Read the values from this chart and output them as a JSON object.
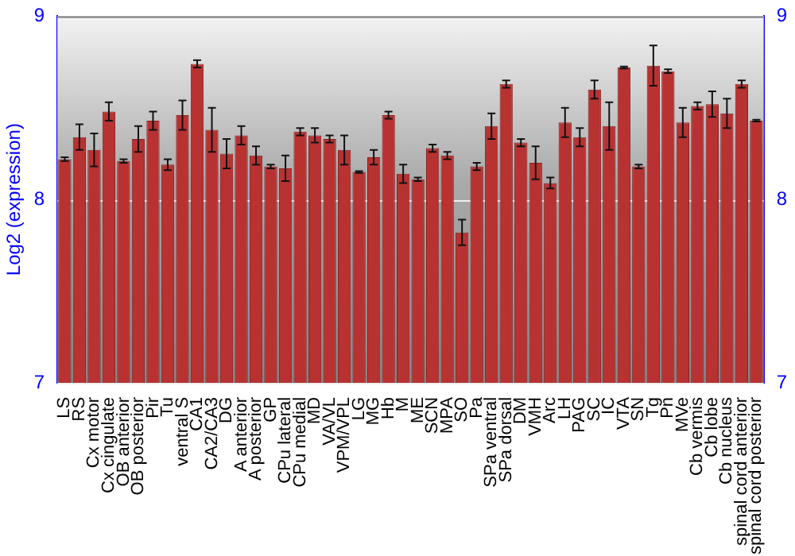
{
  "chart_data": {
    "type": "bar",
    "ylabel": "Log2 (expression)",
    "categories": [
      "LS",
      "RS",
      "Cx motor",
      "Cx cingulate",
      "OB anterior",
      "OB posterior",
      "Pir",
      "Tu",
      "ventral S",
      "CA1",
      "CA2/CA3",
      "DG",
      "A anterior",
      "A posterior",
      "GP",
      "CPu lateral",
      "CPu medial",
      "MD",
      "VA/VL",
      "VPM/VPL",
      "LG",
      "MG",
      "Hb",
      "M",
      "ME",
      "SCN",
      "MPA",
      "SO",
      "Pa",
      "SPa ventral",
      "SPa dorsal",
      "DM",
      "VMH",
      "Arc",
      "LH",
      "PAG",
      "SC",
      "IC",
      "VTA",
      "SN",
      "Tg",
      "Pn",
      "MVe",
      "Cb vermis",
      "Cb lobe",
      "Cb nucleus",
      "spinal cord anterior",
      "spinal cord posterior"
    ],
    "values": [
      8.22,
      8.34,
      8.27,
      8.48,
      8.21,
      8.33,
      8.43,
      8.19,
      8.46,
      8.74,
      8.38,
      8.25,
      8.35,
      8.24,
      8.18,
      8.17,
      8.37,
      8.35,
      8.33,
      8.27,
      8.15,
      8.23,
      8.46,
      8.14,
      8.11,
      8.28,
      8.24,
      7.82,
      8.18,
      8.4,
      8.63,
      8.31,
      8.2,
      8.09,
      8.42,
      8.34,
      8.6,
      8.4,
      8.72,
      8.18,
      8.73,
      8.7,
      8.42,
      8.51,
      8.52,
      8.47,
      8.63,
      8.43
    ],
    "errors": [
      0.01,
      0.07,
      0.09,
      0.05,
      0.01,
      0.07,
      0.05,
      0.03,
      0.08,
      0.02,
      0.12,
      0.08,
      0.05,
      0.05,
      0.01,
      0.07,
      0.02,
      0.04,
      0.02,
      0.08,
      0.005,
      0.04,
      0.02,
      0.05,
      0.01,
      0.02,
      0.02,
      0.07,
      0.02,
      0.07,
      0.02,
      0.02,
      0.09,
      0.03,
      0.08,
      0.05,
      0.05,
      0.13,
      0.005,
      0.01,
      0.11,
      0.01,
      0.08,
      0.02,
      0.07,
      0.08,
      0.02,
      0.005
    ],
    "color": "#b83232",
    "ylim": [
      7,
      9
    ],
    "yticks": [
      7,
      8,
      9
    ],
    "y2lim": [
      7,
      9
    ],
    "y2ticks": [
      7,
      8,
      9
    ],
    "grid": "y"
  }
}
